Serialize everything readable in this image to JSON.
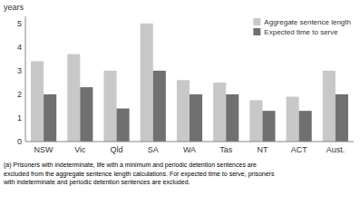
{
  "chart_data": {
    "type": "bar",
    "ylabel": "years",
    "categories": [
      "NSW",
      "Vic",
      "Qld",
      "SA",
      "WA",
      "Tas",
      "NT",
      "ACT",
      "Aust."
    ],
    "series": [
      {
        "name": "Aggregate sentence length",
        "color": "#c8c8c8",
        "values": [
          3.4,
          3.7,
          3.0,
          5.0,
          2.6,
          2.5,
          1.75,
          1.9,
          3.0
        ]
      },
      {
        "name": "Expected time to serve",
        "color": "#707070",
        "values": [
          2.0,
          2.3,
          1.4,
          3.0,
          2.0,
          2.0,
          1.3,
          1.3,
          2.0
        ]
      }
    ],
    "ylim": [
      0,
      5.3
    ],
    "yticks": [
      0,
      1,
      2,
      3,
      4,
      5
    ],
    "grid": false,
    "legend": "upper right",
    "footnote": "(a) Prisoners with indeterminate, life with a minimum and periodic detention sentences are\nexcluded from the aggregate sentence length calculations. For expected time to serve, prisoners\nwith indeterminate and periodic detention sentences are excluded."
  }
}
